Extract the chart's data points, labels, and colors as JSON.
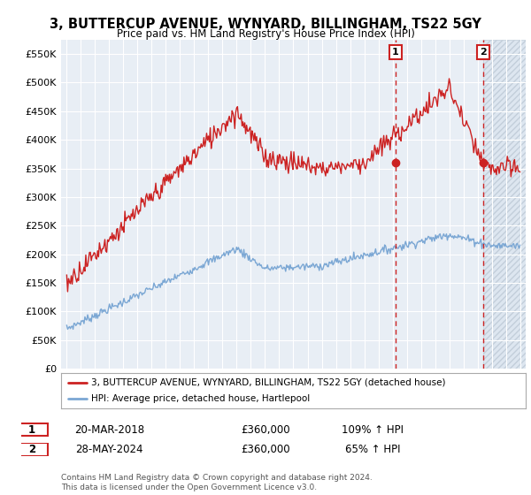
{
  "title": "3, BUTTERCUP AVENUE, WYNYARD, BILLINGHAM, TS22 5GY",
  "subtitle": "Price paid vs. HM Land Registry's House Price Index (HPI)",
  "ylim": [
    0,
    575000
  ],
  "yticks": [
    0,
    50000,
    100000,
    150000,
    200000,
    250000,
    300000,
    350000,
    400000,
    450000,
    500000,
    550000
  ],
  "ytick_labels": [
    "£0",
    "£50K",
    "£100K",
    "£150K",
    "£200K",
    "£250K",
    "£300K",
    "£350K",
    "£400K",
    "£450K",
    "£500K",
    "£550K"
  ],
  "xlim_start": 1994.6,
  "xlim_end": 2027.4,
  "background_color": "#ffffff",
  "plot_bg_color": "#e8eef5",
  "grid_color": "#ffffff",
  "hpi_line_color": "#7ba7d4",
  "price_line_color": "#cc2222",
  "marker1_date": 2018.21,
  "marker1_price": 360000,
  "marker2_date": 2024.41,
  "marker2_price": 360000,
  "legend_line1": "3, BUTTERCUP AVENUE, WYNYARD, BILLINGHAM, TS22 5GY (detached house)",
  "legend_line2": "HPI: Average price, detached house, Hartlepool",
  "footer": "Contains HM Land Registry data © Crown copyright and database right 2024.\nThis data is licensed under the Open Government Licence v3.0.",
  "table_row1": [
    "1",
    "20-MAR-2018",
    "£360,000",
    "109% ↑ HPI"
  ],
  "table_row2": [
    "2",
    "28-MAY-2024",
    "£360,000",
    "65% ↑ HPI"
  ]
}
